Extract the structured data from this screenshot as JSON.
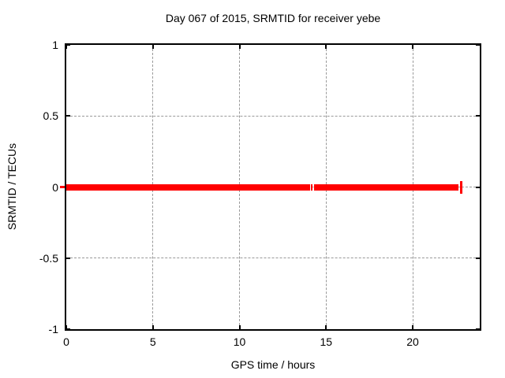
{
  "chart_data": {
    "type": "line",
    "title": "Day 067 of 2015, SRMTID for receiver yebe",
    "xlabel": "GPS time / hours",
    "ylabel": "SRMTID / TECUs",
    "xlim": [
      0,
      23.87
    ],
    "ylim": [
      -1,
      1
    ],
    "x_ticks": [
      {
        "value": 0,
        "label": "0"
      },
      {
        "value": 5,
        "label": "5"
      },
      {
        "value": 10,
        "label": "10"
      },
      {
        "value": 15,
        "label": "15"
      },
      {
        "value": 20,
        "label": "20"
      }
    ],
    "y_ticks": [
      {
        "value": 1,
        "label": "1"
      },
      {
        "value": 0.5,
        "label": "0.5"
      },
      {
        "value": 0,
        "label": "0"
      },
      {
        "value": -0.5,
        "label": "-0.5"
      },
      {
        "value": -1,
        "label": "-1"
      }
    ],
    "grid": true,
    "legend_position": "none",
    "series": [
      {
        "name": "SRMTID",
        "color": "#ff0000",
        "y_value": 0.0,
        "segments": [
          {
            "x_start": 0.0,
            "x_end": 14.08,
            "y": 0.0
          },
          {
            "x_start": 14.3,
            "x_end": 22.65,
            "y": 0.0
          }
        ],
        "isolated_points": [
          {
            "x": 14.17,
            "y": 0.0,
            "style": "small"
          },
          {
            "x": 22.78,
            "y": 0.0,
            "style": "errorbar"
          }
        ]
      }
    ]
  },
  "colors": {
    "background": "#ffffff",
    "axis": "#000000",
    "grid": "#999999",
    "text": "#000000",
    "series_red": "#ff0000"
  }
}
